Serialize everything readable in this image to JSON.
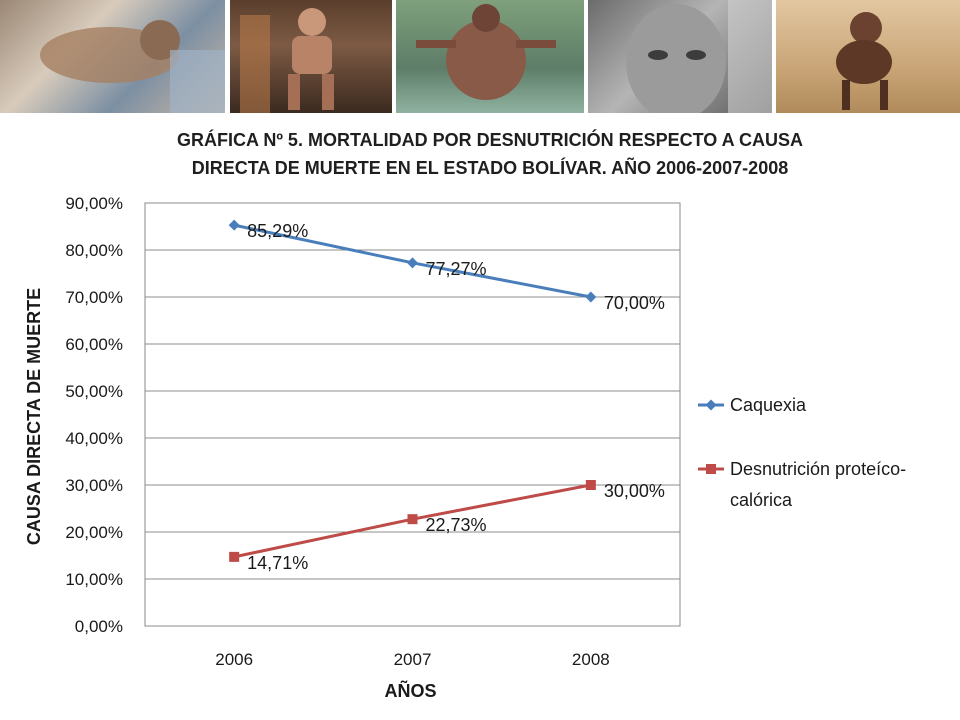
{
  "chart_data": {
    "type": "line",
    "title_lines": [
      "GRÁFICA Nº 5. MORTALIDAD POR DESNUTRICIÓN RESPECTO A CAUSA",
      "DIRECTA DE MUERTE EN EL ESTADO BOLÍVAR. AÑO 2006-2007-2008"
    ],
    "xlabel": "AÑOS",
    "ylabel": "CAUSA DIRECTA DE MUERTE",
    "categories": [
      "2006",
      "2007",
      "2008"
    ],
    "ylim": [
      0,
      90
    ],
    "yticks": [
      0,
      10,
      20,
      30,
      40,
      50,
      60,
      70,
      80,
      90
    ],
    "ytick_labels": [
      "0,00%",
      "10,00%",
      "20,00%",
      "30,00%",
      "40,00%",
      "50,00%",
      "60,00%",
      "70,00%",
      "80,00%",
      "90,00%"
    ],
    "grid": true,
    "legend_position": "right",
    "series": [
      {
        "name": "Caquexia",
        "legend_lines": [
          "Caquexia"
        ],
        "values": [
          85.29,
          77.27,
          70.0
        ],
        "labels": [
          "85,29%",
          "77,27%",
          "70,00%"
        ],
        "color": "#4a7ebb",
        "marker": "diamond"
      },
      {
        "name": "Desnutrición proteíco-calórica",
        "legend_lines": [
          "Desnutrición proteíco-",
          "calórica"
        ],
        "values": [
          14.71,
          22.73,
          30.0
        ],
        "labels": [
          "14,71%",
          "22,73%",
          "30,00%"
        ],
        "color": "#be4b48",
        "marker": "square"
      }
    ]
  },
  "photos": [
    {
      "subject": "emaciated-child-in-hospital-bed",
      "tone": "#b8a48e"
    },
    {
      "subject": "emaciated-elderly-man-seated",
      "tone": "#8a5a3c"
    },
    {
      "subject": "emaciated-child-back-view",
      "tone": "#6f8f6a"
    },
    {
      "subject": "elderly-woman-portrait",
      "tone": "#8e8e8e"
    },
    {
      "subject": "malnourished-child-crouching",
      "tone": "#c49a62"
    }
  ]
}
